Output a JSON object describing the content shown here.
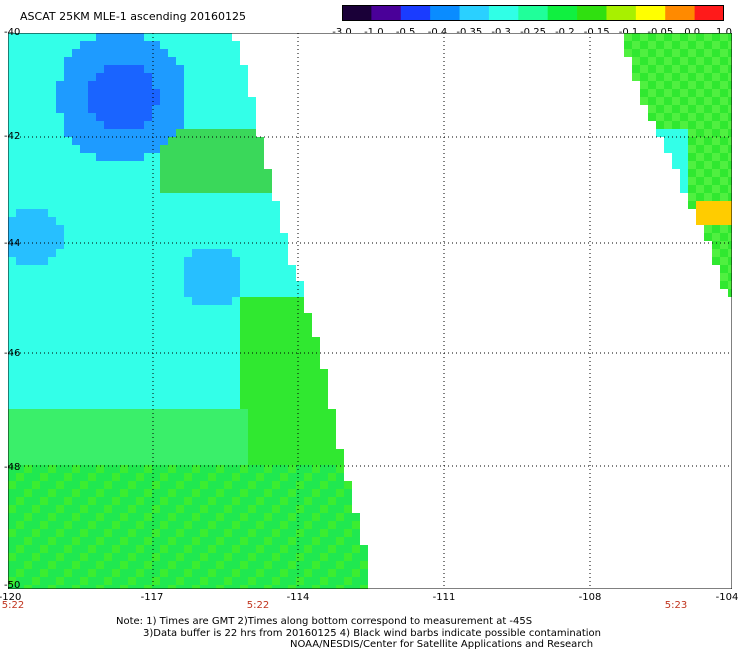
{
  "header": {
    "title": "ASCAT 25KM MLE-1 ascending",
    "date": "20160125"
  },
  "colorbar": {
    "labels": [
      "-3.0",
      "-1.0",
      "-0.5",
      "-0.4",
      "-0.35",
      "-0.3",
      "-0.25",
      "-0.2",
      "-0.15",
      "-0.1",
      "-0.05",
      "0.0",
      "1.0"
    ],
    "colors": [
      "#1a0038",
      "#4a0099",
      "#1a3cff",
      "#0a8cff",
      "#2ad0ff",
      "#30ffe6",
      "#20ff9a",
      "#10f040",
      "#30e010",
      "#a8f000",
      "#ffff00",
      "#ff8a00",
      "#ff1a1a"
    ]
  },
  "axes": {
    "lat_labels": [
      "-40",
      "-42",
      "-44",
      "-46",
      "-48",
      "-50"
    ],
    "lon_labels": [
      "-120",
      "-117",
      "-114",
      "-111",
      "-108",
      "-104"
    ],
    "lat_range": [
      -50,
      -40
    ],
    "lon_range": [
      -120,
      -104
    ],
    "grid": true,
    "times": [
      "5:22",
      "5:22",
      "5:23"
    ]
  },
  "notes": {
    "line1": "Note: 1) Times are GMT 2)Times along bottom correspond to measurement at -45S",
    "line2": "3)Data buffer is 22 hrs from 20160125 4) Black wind barbs indicate possible contamination",
    "line3": "NOAA/NESDIS/Center for Satellite Applications and Research"
  }
}
